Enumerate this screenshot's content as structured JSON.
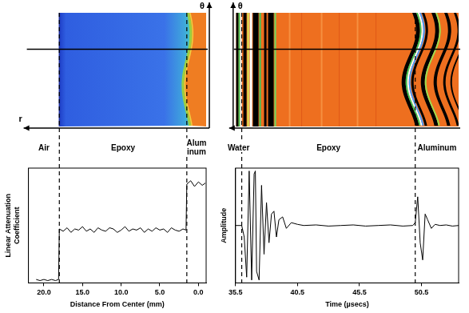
{
  "chart_data": [
    {
      "type": "line",
      "x_label": "Distance From Center (mm)",
      "y_label": "Linear Attenuation Coefficient",
      "x": [
        21,
        20.5,
        20,
        19.5,
        19,
        18.5,
        18.1,
        18.0,
        17.5,
        17,
        16.5,
        16,
        15.5,
        15,
        14.5,
        14,
        13.5,
        13,
        12.5,
        12,
        11.5,
        11,
        10.5,
        10,
        9.5,
        9,
        8.5,
        8,
        7.5,
        7,
        6.5,
        6,
        5.5,
        5,
        4.5,
        4,
        3.5,
        3,
        2.5,
        2,
        1.6,
        1.5,
        1,
        0.5,
        0,
        -0.5,
        -0.9
      ],
      "values": [
        0.03,
        0.02,
        0.03,
        0.02,
        0.03,
        0.02,
        0.03,
        0.47,
        0.45,
        0.48,
        0.44,
        0.47,
        0.46,
        0.49,
        0.45,
        0.47,
        0.44,
        0.48,
        0.46,
        0.45,
        0.48,
        0.47,
        0.44,
        0.46,
        0.49,
        0.45,
        0.47,
        0.46,
        0.48,
        0.44,
        0.47,
        0.45,
        0.48,
        0.46,
        0.47,
        0.44,
        0.48,
        0.46,
        0.45,
        0.47,
        0.46,
        0.86,
        0.89,
        0.84,
        0.88,
        0.85,
        0.87
      ],
      "color": "#000000",
      "xlim": [
        22,
        -1
      ],
      "xticks": [
        {
          "value": 20,
          "label": "20.0"
        },
        {
          "value": 15,
          "label": "15.0"
        },
        {
          "value": 10,
          "label": "10.0"
        },
        {
          "value": 5,
          "label": "5.0"
        },
        {
          "value": 0,
          "label": "0.0"
        }
      ],
      "ylim": [
        0,
        1
      ],
      "tick_labels": "x",
      "grid": false,
      "regions": [
        {
          "label": "Air",
          "from": 22,
          "to": 18
        },
        {
          "label": "Epoxy",
          "from": 18,
          "to": 1.5
        },
        {
          "label": "Aluminum",
          "from": 1.5,
          "to": -1
        }
      ],
      "image_labels": [
        "θ",
        "r"
      ]
    },
    {
      "type": "line",
      "x_label": "Time (µsecs)",
      "y_label": "Amplitude",
      "x": [
        35.5,
        36.0,
        36.2,
        36.4,
        36.6,
        36.8,
        37.0,
        37.1,
        37.2,
        37.4,
        37.6,
        37.8,
        38.0,
        38.2,
        38.4,
        38.6,
        38.8,
        39.0,
        39.3,
        39.6,
        40.0,
        40.5,
        41.0,
        42.0,
        43.0,
        44.0,
        45.0,
        46.0,
        47.0,
        48.0,
        49.0,
        49.8,
        50.0,
        50.2,
        50.4,
        50.6,
        50.8,
        51.0,
        51.3,
        51.6,
        52.0,
        52.5,
        53.0,
        53.5
      ],
      "values": [
        0,
        0,
        -0.2,
        -0.9,
        0.95,
        -0.95,
        0.9,
        0.95,
        -0.8,
        -0.95,
        0.7,
        -0.5,
        0.4,
        -0.3,
        0.2,
        0.25,
        -0.2,
        0.1,
        0.15,
        -0.05,
        0.05,
        0.02,
        0,
        0.01,
        -0.01,
        0,
        0.01,
        -0.01,
        0,
        0.01,
        -0.01,
        0,
        0.05,
        0.5,
        -0.3,
        -0.6,
        0.2,
        0.1,
        -0.05,
        0.02,
        0,
        0.01,
        -0.01,
        0
      ],
      "color": "#000000",
      "xlim": [
        35.5,
        53.5
      ],
      "xticks": [
        35.5,
        40.5,
        45.5,
        50.5
      ],
      "ylim": [
        -1,
        1
      ],
      "tick_labels": "x",
      "grid": false,
      "regions": [
        {
          "label": "Water",
          "from": 35.5,
          "to": 36.0
        },
        {
          "label": "Epoxy",
          "from": 36.0,
          "to": 50.0
        },
        {
          "label": "Aluminum",
          "from": 50.0,
          "to": 53.5
        }
      ],
      "image_labels": [
        "θ"
      ]
    }
  ]
}
